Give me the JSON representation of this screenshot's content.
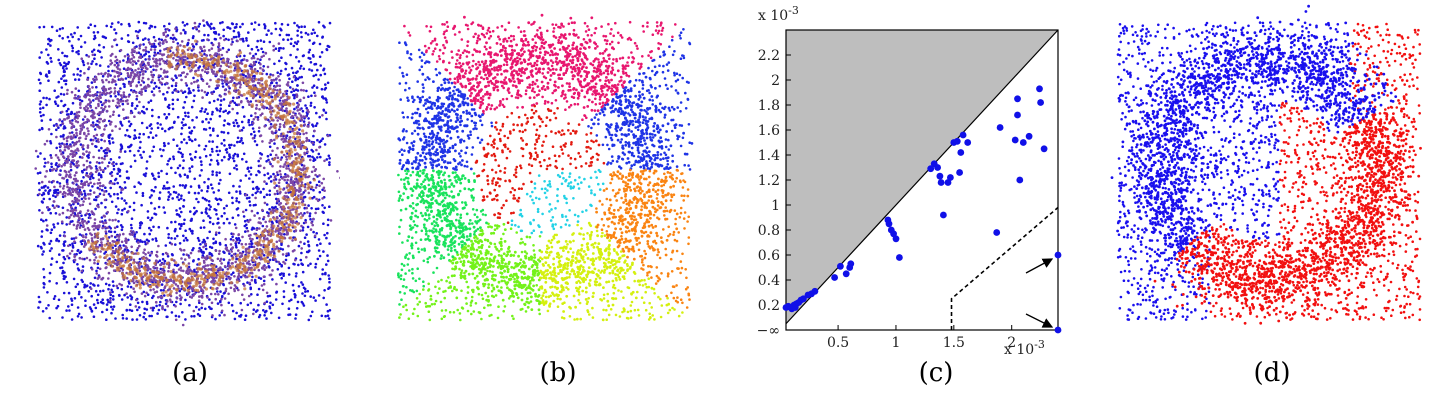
{
  "panels": {
    "a": {
      "label": "(a)",
      "colors": [
        "#1a10d8",
        "#7a46a6",
        "#c5763c"
      ]
    },
    "b": {
      "label": "(b)",
      "colors": [
        "#e8176f",
        "#1f34e6",
        "#e31a10",
        "#19e35c",
        "#fa8412",
        "#23d2e6",
        "#74f21a",
        "#d4f00f",
        "#8a1de0",
        "#f5e611",
        "#ff3c9c"
      ]
    },
    "c": {
      "label": "(c)"
    },
    "d": {
      "label": "(d)",
      "colors": [
        "#1a10ee",
        "#f21010"
      ]
    }
  },
  "chart_data": [
    {
      "panel": "a",
      "type": "scatter",
      "description_series": [
        "uniform background points",
        "ring",
        "high-density spiral arc"
      ]
    },
    {
      "panel": "b",
      "type": "scatter",
      "description_series": [
        "clusters"
      ]
    },
    {
      "panel": "c",
      "type": "scatter",
      "xlim": [
        0.05,
        2.4
      ],
      "ylim": [
        0.0,
        2.4
      ],
      "x_scale_label": "x 10",
      "x_scale_exponent": "-3",
      "y_scale_label": "x 10",
      "y_scale_exponent": "-3",
      "xticks": [
        {
          "v": 0.5,
          "label": "0.5"
        },
        {
          "v": 1.0,
          "label": "1"
        },
        {
          "v": 1.5,
          "label": "1.5"
        },
        {
          "v": 2.0,
          "label": "2"
        }
      ],
      "yticks": [
        {
          "v": 0.2,
          "label": "0.2"
        },
        {
          "v": 0.4,
          "label": "0.4"
        },
        {
          "v": 0.6,
          "label": "0.6"
        },
        {
          "v": 0.8,
          "label": "0.8"
        },
        {
          "v": 1.0,
          "label": "1"
        },
        {
          "v": 1.2,
          "label": "1.2"
        },
        {
          "v": 1.4,
          "label": "1.4"
        },
        {
          "v": 1.6,
          "label": "1.6"
        },
        {
          "v": 1.8,
          "label": "1.8"
        },
        {
          "v": 2.0,
          "label": "2"
        },
        {
          "v": 2.2,
          "label": "2.2"
        }
      ],
      "y_inf_label": "−∞",
      "diagonal": true,
      "shaded_region": "above diagonal",
      "dashed_boundary": [
        [
          1.48,
          0.0
        ],
        [
          1.48,
          0.25
        ],
        [
          2.4,
          0.98
        ]
      ],
      "marker_color": "#1010e8",
      "shade_color": "#bebebe",
      "points": [
        [
          0.05,
          0.18
        ],
        [
          0.07,
          0.19
        ],
        [
          0.09,
          0.18
        ],
        [
          0.1,
          0.17
        ],
        [
          0.12,
          0.2
        ],
        [
          0.14,
          0.21
        ],
        [
          0.16,
          0.22
        ],
        [
          0.18,
          0.24
        ],
        [
          0.2,
          0.25
        ],
        [
          0.24,
          0.28
        ],
        [
          0.27,
          0.29
        ],
        [
          0.3,
          0.31
        ],
        [
          0.11,
          0.19
        ],
        [
          0.13,
          0.18
        ],
        [
          0.47,
          0.42
        ],
        [
          0.52,
          0.51
        ],
        [
          0.57,
          0.45
        ],
        [
          0.61,
          0.53
        ],
        [
          0.6,
          0.5
        ],
        [
          0.93,
          0.88
        ],
        [
          0.94,
          0.85
        ],
        [
          0.96,
          0.8
        ],
        [
          0.98,
          0.77
        ],
        [
          1.0,
          0.73
        ],
        [
          1.03,
          0.58
        ],
        [
          1.3,
          1.29
        ],
        [
          1.33,
          1.33
        ],
        [
          1.36,
          1.3
        ],
        [
          1.38,
          1.23
        ],
        [
          1.39,
          1.18
        ],
        [
          1.41,
          0.92
        ],
        [
          1.45,
          1.18
        ],
        [
          1.47,
          1.22
        ],
        [
          1.5,
          1.5
        ],
        [
          1.53,
          1.51
        ],
        [
          1.55,
          1.26
        ],
        [
          1.56,
          1.42
        ],
        [
          1.58,
          1.56
        ],
        [
          1.62,
          1.5
        ],
        [
          1.87,
          0.78
        ],
        [
          2.03,
          1.52
        ],
        [
          2.05,
          1.72
        ],
        [
          2.05,
          1.85
        ],
        [
          2.07,
          1.2
        ],
        [
          2.1,
          1.5
        ],
        [
          2.24,
          1.93
        ],
        [
          2.25,
          1.82
        ],
        [
          2.28,
          1.45
        ],
        [
          2.15,
          1.55
        ],
        [
          1.9,
          1.62
        ]
      ],
      "outlier_points": [
        [
          2.4,
          0.6
        ],
        [
          2.4,
          0.0
        ]
      ]
    },
    {
      "panel": "d",
      "type": "scatter",
      "description_series": [
        "cluster 1 (blue)",
        "cluster 2 (red)"
      ]
    }
  ]
}
